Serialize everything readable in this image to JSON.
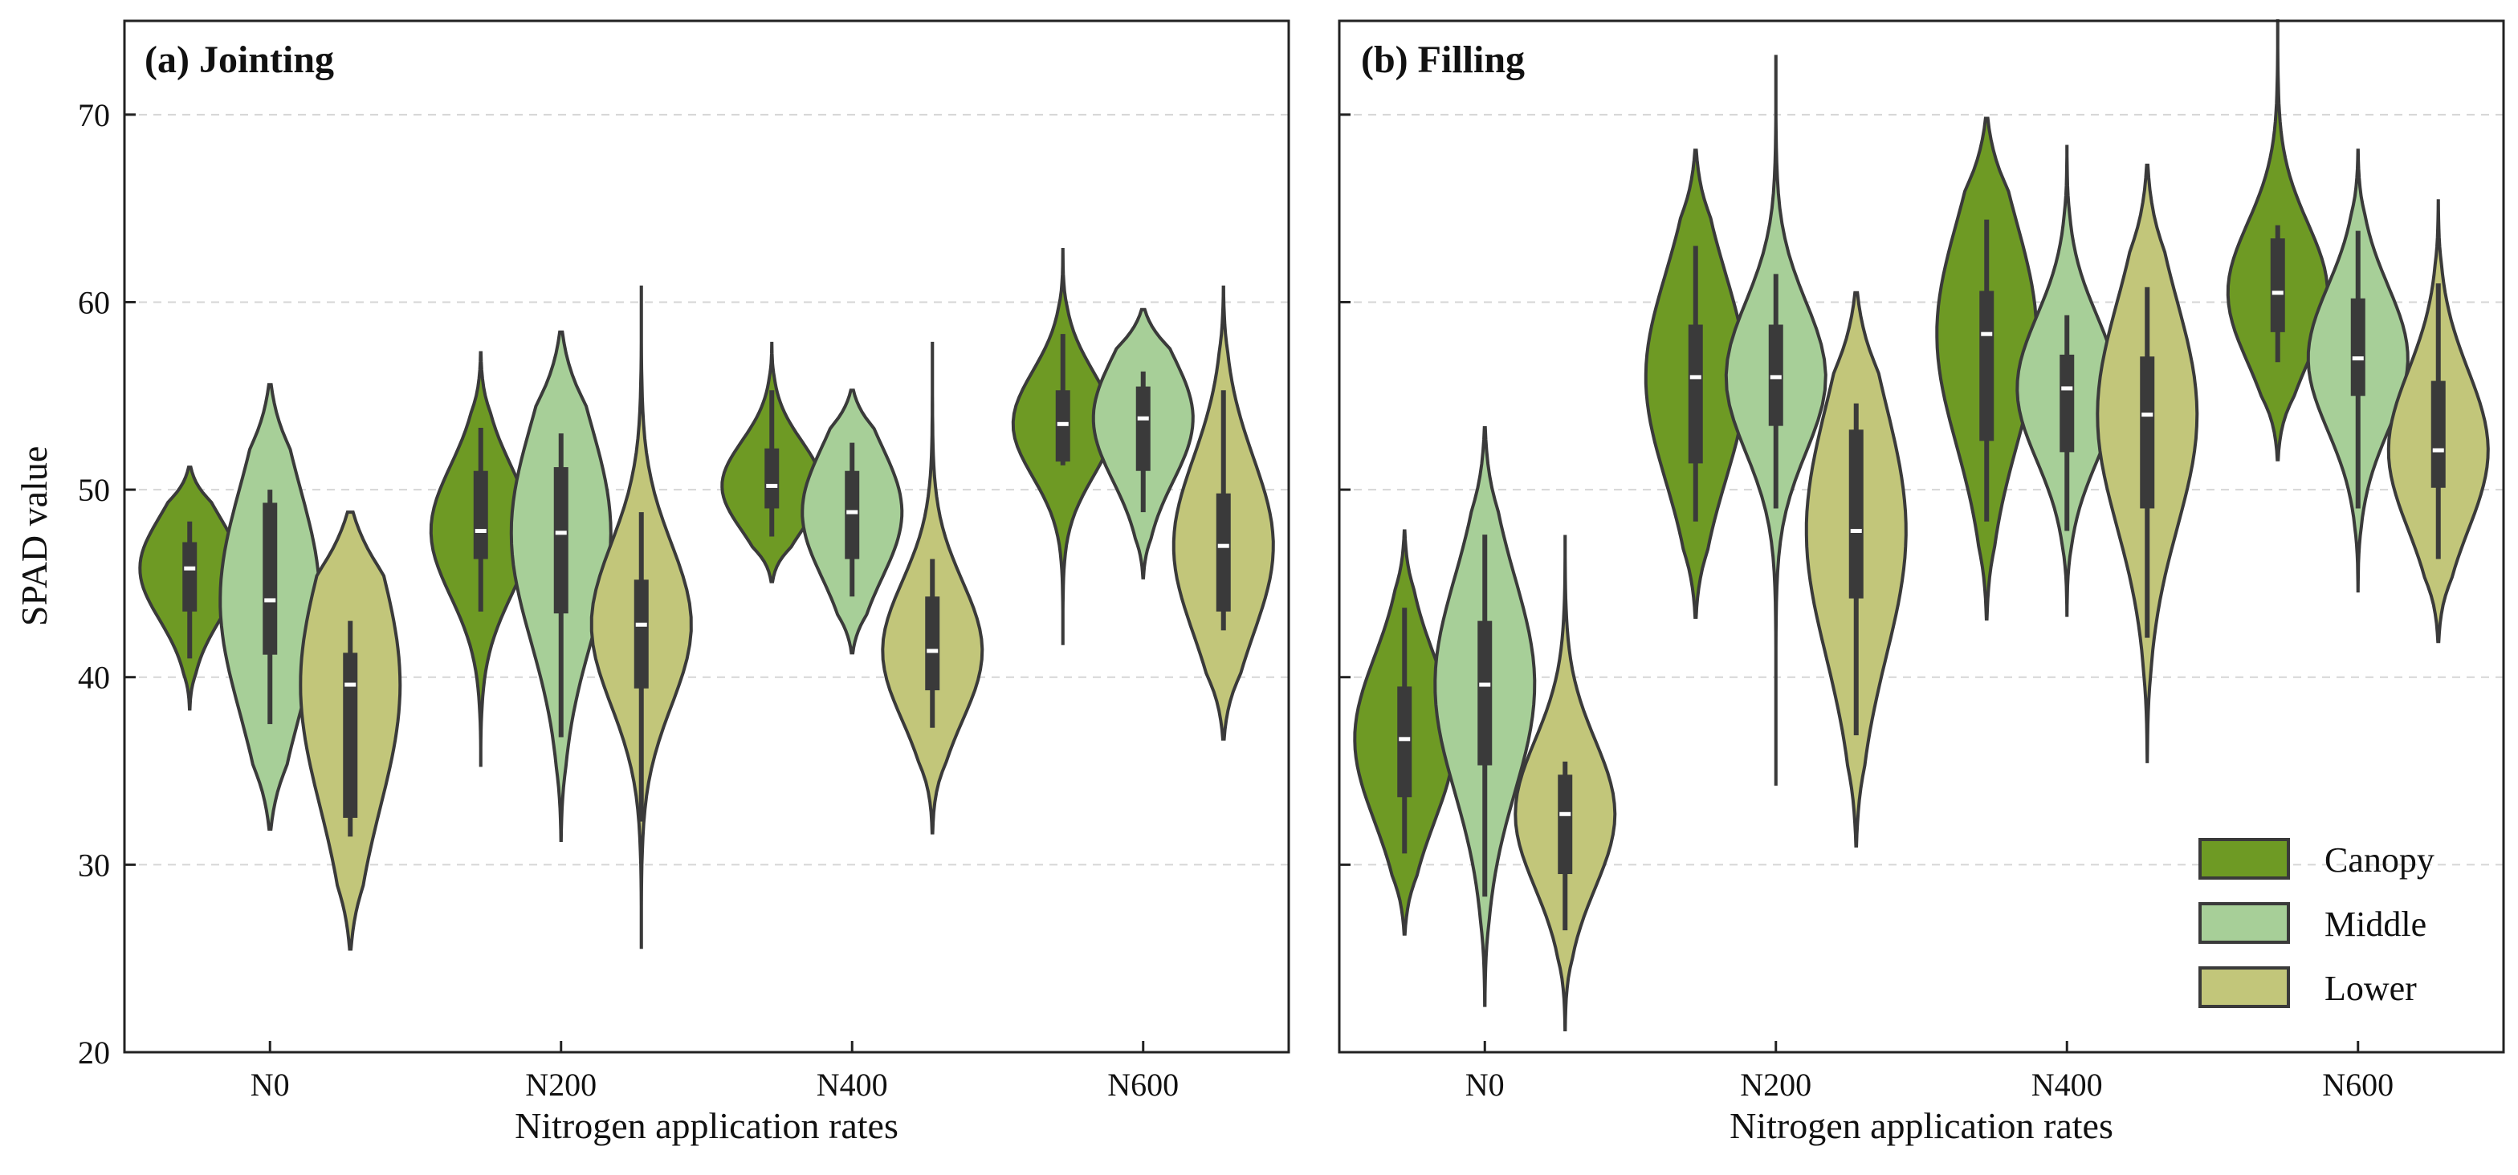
{
  "chart_data": {
    "type": "violin",
    "ylabel": "SPAD value",
    "xlabel": "Nitrogen application rates",
    "ylim": [
      20,
      75
    ],
    "yticks": [
      20,
      30,
      40,
      50,
      60,
      70
    ],
    "ytick_labels": [
      "20",
      "30",
      "40",
      "50",
      "60",
      "70"
    ],
    "categories": [
      "N0",
      "N200",
      "N400",
      "N600"
    ],
    "grid": "horizontal dashed",
    "legend": {
      "position": "bottom-right of panel (b)",
      "entries": [
        {
          "name": "Canopy",
          "color": "#6e9a24"
        },
        {
          "name": "Middle",
          "color": "#a7cf98"
        },
        {
          "name": "Lower",
          "color": "#c2c67a"
        }
      ]
    },
    "panels": [
      {
        "title": "(a) Jointing",
        "series": [
          {
            "name": "Canopy",
            "stats": [
              {
                "category": "N0",
                "min": 38.3,
                "max": 51.2,
                "whisker_low": 41.0,
                "whisker_high": 48.3,
                "q1": 43.5,
                "median": 45.8,
                "q3": 47.2
              },
              {
                "category": "N200",
                "min": 35.3,
                "max": 57.3,
                "whisker_low": 43.5,
                "whisker_high": 53.3,
                "q1": 46.3,
                "median": 47.8,
                "q3": 51.0
              },
              {
                "category": "N400",
                "min": 45.1,
                "max": 57.8,
                "whisker_low": 47.5,
                "whisker_high": 55.3,
                "q1": 49.0,
                "median": 50.2,
                "q3": 52.2
              },
              {
                "category": "N600",
                "min": 41.8,
                "max": 62.8,
                "whisker_low": 51.3,
                "whisker_high": 58.3,
                "q1": 51.5,
                "median": 53.5,
                "q3": 55.3
              }
            ]
          },
          {
            "name": "Middle",
            "stats": [
              {
                "category": "N0",
                "min": 31.9,
                "max": 55.6,
                "whisker_low": 37.5,
                "whisker_high": 50.0,
                "q1": 41.2,
                "median": 44.1,
                "q3": 49.3
              },
              {
                "category": "N200",
                "min": 31.3,
                "max": 58.4,
                "whisker_low": 36.8,
                "whisker_high": 53.0,
                "q1": 43.4,
                "median": 47.7,
                "q3": 51.2
              },
              {
                "category": "N400",
                "min": 41.3,
                "max": 55.3,
                "whisker_low": 44.3,
                "whisker_high": 52.5,
                "q1": 46.3,
                "median": 48.8,
                "q3": 51.0
              },
              {
                "category": "N600",
                "min": 45.3,
                "max": 59.6,
                "whisker_low": 48.8,
                "whisker_high": 56.3,
                "q1": 51.0,
                "median": 53.8,
                "q3": 55.5
              }
            ]
          },
          {
            "name": "Lower",
            "stats": [
              {
                "category": "N0",
                "min": 25.5,
                "max": 48.8,
                "whisker_low": 31.5,
                "whisker_high": 43.0,
                "q1": 32.5,
                "median": 39.6,
                "q3": 41.3
              },
              {
                "category": "N200",
                "min": 25.6,
                "max": 60.8,
                "whisker_low": 32.3,
                "whisker_high": 48.8,
                "q1": 39.4,
                "median": 42.8,
                "q3": 45.2
              },
              {
                "category": "N400",
                "min": 31.7,
                "max": 57.8,
                "whisker_low": 37.3,
                "whisker_high": 46.3,
                "q1": 39.3,
                "median": 41.4,
                "q3": 44.3
              },
              {
                "category": "N600",
                "min": 36.7,
                "max": 60.8,
                "whisker_low": 42.5,
                "whisker_high": 55.3,
                "q1": 43.5,
                "median": 47.0,
                "q3": 49.8
              }
            ]
          }
        ]
      },
      {
        "title": "(b) Filling",
        "series": [
          {
            "name": "Canopy",
            "stats": [
              {
                "category": "N0",
                "min": 26.3,
                "max": 47.8,
                "whisker_low": 30.6,
                "whisker_high": 43.7,
                "q1": 33.6,
                "median": 36.7,
                "q3": 39.5
              },
              {
                "category": "N200",
                "min": 43.2,
                "max": 68.1,
                "whisker_low": 48.3,
                "whisker_high": 63.0,
                "q1": 51.4,
                "median": 56.0,
                "q3": 58.8
              },
              {
                "category": "N400",
                "min": 43.1,
                "max": 69.8,
                "whisker_low": 48.3,
                "whisker_high": 64.4,
                "q1": 52.6,
                "median": 58.3,
                "q3": 60.6
              },
              {
                "category": "N600",
                "min": 51.6,
                "max": 75.0,
                "whisker_low": 56.8,
                "whisker_high": 64.1,
                "q1": 58.4,
                "median": 60.5,
                "q3": 63.4
              }
            ]
          },
          {
            "name": "Middle",
            "stats": [
              {
                "category": "N0",
                "min": 22.5,
                "max": 53.3,
                "whisker_low": 28.3,
                "whisker_high": 47.6,
                "q1": 35.3,
                "median": 39.6,
                "q3": 43.0
              },
              {
                "category": "N200",
                "min": 34.3,
                "max": 73.1,
                "whisker_low": 49.0,
                "whisker_high": 61.5,
                "q1": 53.4,
                "median": 56.0,
                "q3": 58.8
              },
              {
                "category": "N400",
                "min": 43.3,
                "max": 68.3,
                "whisker_low": 47.8,
                "whisker_high": 59.3,
                "q1": 52.0,
                "median": 55.4,
                "q3": 57.2
              },
              {
                "category": "N600",
                "min": 44.6,
                "max": 68.1,
                "whisker_low": 49.0,
                "whisker_high": 63.8,
                "q1": 55.0,
                "median": 57.0,
                "q3": 60.2
              }
            ]
          },
          {
            "name": "Lower",
            "stats": [
              {
                "category": "N0",
                "min": 21.2,
                "max": 47.5,
                "whisker_low": 26.5,
                "whisker_high": 35.5,
                "q1": 29.5,
                "median": 32.7,
                "q3": 34.8
              },
              {
                "category": "N200",
                "min": 31.0,
                "max": 60.5,
                "whisker_low": 36.9,
                "whisker_high": 54.6,
                "q1": 44.2,
                "median": 47.8,
                "q3": 53.2
              },
              {
                "category": "N400",
                "min": 35.5,
                "max": 67.3,
                "whisker_low": 42.1,
                "whisker_high": 60.8,
                "q1": 49.0,
                "median": 54.0,
                "q3": 57.1
              },
              {
                "category": "N600",
                "min": 41.9,
                "max": 65.4,
                "whisker_low": 46.3,
                "whisker_high": 61.0,
                "q1": 50.1,
                "median": 52.1,
                "q3": 55.8
              }
            ]
          }
        ]
      }
    ]
  }
}
